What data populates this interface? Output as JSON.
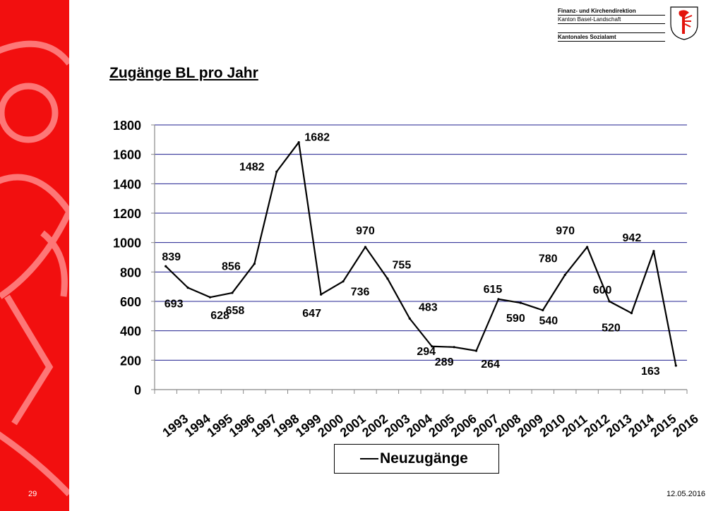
{
  "slide": {
    "page_number": "29",
    "date": "12.05.2016",
    "header": {
      "line1": "Finanz- und Kirchendirektion",
      "line2": "Kanton Basel-Landschaft",
      "line3": "Kantonales Sozialamt"
    },
    "title": "Zugänge BL pro Jahr",
    "band_color": "#f20f0f"
  },
  "chart_data": {
    "type": "line",
    "title": "Zugänge BL pro Jahr",
    "categories": [
      "1993",
      "1994",
      "1995",
      "1996",
      "1997",
      "1998",
      "1999",
      "2000",
      "2001",
      "2002",
      "2003",
      "2004",
      "2005",
      "2006",
      "2007",
      "2008",
      "2009",
      "2010",
      "2011",
      "2012",
      "2013",
      "2014",
      "2015",
      "2016"
    ],
    "series": [
      {
        "name": "Neuzugänge",
        "color": "#000000",
        "values": [
          839,
          693,
          628,
          658,
          856,
          1482,
          1682,
          647,
          736,
          970,
          755,
          483,
          294,
          289,
          264,
          615,
          590,
          540,
          780,
          970,
          600,
          520,
          942,
          163
        ]
      }
    ],
    "ylim": [
      0,
      1800
    ],
    "yticks": [
      "0",
      "200",
      "400",
      "600",
      "800",
      "1000",
      "1200",
      "1400",
      "1600",
      "1800"
    ],
    "grid": true,
    "grid_color": "#1f1f8f",
    "legend_position": "bottom",
    "data_labels": [
      "839",
      "693",
      "628",
      "658",
      "856",
      "1482",
      "1682",
      "647",
      "736",
      "970",
      "755",
      "483",
      "294",
      "289",
      "264",
      "615",
      "590",
      "540",
      "780",
      "970",
      "600",
      "520",
      "942",
      "163"
    ]
  }
}
